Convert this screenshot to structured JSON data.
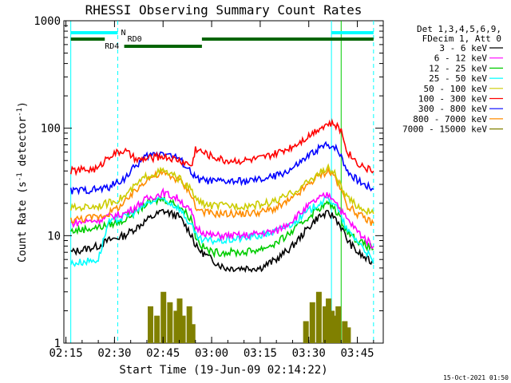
{
  "chart_data": {
    "type": "line",
    "title": "RHESSI Observing Summary Count Rates",
    "xlabel": "Start Time (19-Jun-09 02:14:22)",
    "ylabel_main": "Count Rate (s",
    "ylabel_sup1": "-1",
    "ylabel_mid": " detector",
    "ylabel_sup2": "-1",
    "ylabel_end": ")",
    "yscale": "log",
    "ylim": [
      1,
      1000
    ],
    "xlim": [
      "02:14:22",
      "03:53:00"
    ],
    "x_ticks": [
      {
        "t": 15,
        "label": "02:15"
      },
      {
        "t": 30,
        "label": "02:30"
      },
      {
        "t": 45,
        "label": "02:45"
      },
      {
        "t": 60,
        "label": "03:00"
      },
      {
        "t": 75,
        "label": "03:15"
      },
      {
        "t": 90,
        "label": "03:30"
      },
      {
        "t": 105,
        "label": "03:45"
      }
    ],
    "y_ticks": [
      {
        "v": 1,
        "label": "1"
      },
      {
        "v": 10,
        "label": "10"
      },
      {
        "v": 100,
        "label": "100"
      },
      {
        "v": 1000,
        "label": "1000"
      }
    ],
    "legend_header": [
      "Det 1,3,4,5,6,9,",
      "FDecim 1, Att 0"
    ],
    "legend_placement": "right",
    "series": [
      {
        "name": "3 - 6 keV",
        "color": "#000000",
        "x": [
          16.5,
          25,
          28,
          33,
          37,
          40,
          45,
          50,
          54,
          55,
          57,
          60,
          64,
          70,
          75,
          80,
          85,
          90,
          93,
          96,
          98,
          100,
          102,
          105,
          108,
          110
        ],
        "y": [
          7,
          8,
          9,
          10,
          12,
          14,
          17,
          15,
          10,
          8,
          7,
          6,
          5,
          5,
          5,
          6,
          8,
          12,
          15,
          16,
          15,
          12,
          9,
          7,
          6,
          5.5
        ]
      },
      {
        "name": "6 - 12 keV",
        "color": "#ff00ff",
        "x": [
          16.5,
          25,
          28,
          33,
          37,
          40,
          45,
          50,
          54,
          55,
          57,
          60,
          64,
          70,
          75,
          80,
          85,
          90,
          93,
          96,
          98,
          100,
          102,
          105,
          108,
          110
        ],
        "y": [
          13,
          14,
          15,
          16,
          19,
          22,
          25,
          22,
          16,
          12,
          11,
          10,
          10,
          10,
          10.5,
          11,
          14,
          19,
          22,
          24,
          22,
          17,
          14,
          11,
          9,
          8
        ]
      },
      {
        "name": "12 - 25 keV",
        "color": "#00cc00",
        "x": [
          16.5,
          25,
          28,
          33,
          37,
          40,
          45,
          50,
          54,
          55,
          57,
          60,
          64,
          70,
          75,
          80,
          85,
          90,
          93,
          96,
          98,
          100,
          102,
          105,
          108,
          110
        ],
        "y": [
          11,
          12,
          12.5,
          14,
          17,
          20,
          22,
          19,
          14,
          10,
          8,
          7,
          7,
          7,
          7.5,
          8.5,
          11,
          15,
          18,
          20,
          18,
          14,
          11,
          9,
          8,
          7.5
        ]
      },
      {
        "name": "25 - 50 keV",
        "color": "#00ffff",
        "x": [
          16.5,
          25,
          28,
          33,
          37,
          40,
          45,
          50,
          54,
          55,
          57,
          60,
          64,
          70,
          75,
          80,
          85,
          90,
          93,
          96,
          98,
          100,
          102,
          105,
          108,
          110
        ],
        "y": [
          5.5,
          6,
          13,
          15,
          17,
          20,
          22,
          18,
          12,
          10,
          9,
          9,
          9,
          9.5,
          10,
          11,
          13,
          17,
          20,
          22,
          20,
          15,
          11,
          9,
          7,
          5.5
        ]
      },
      {
        "name": "50 - 100 keV",
        "color": "#cccc00",
        "x": [
          16.5,
          25,
          28,
          33,
          37,
          40,
          45,
          50,
          54,
          55,
          57,
          60,
          64,
          70,
          75,
          80,
          85,
          90,
          93,
          96,
          98,
          100,
          102,
          105,
          108,
          110
        ],
        "y": [
          18,
          19,
          20,
          23,
          30,
          36,
          40,
          34,
          26,
          22,
          20,
          19,
          19,
          19,
          19.5,
          21,
          25,
          32,
          38,
          42,
          38,
          28,
          22,
          19,
          17,
          16
        ]
      },
      {
        "name": "100 - 300 keV",
        "color": "#ff0000",
        "x": [
          16.5,
          25,
          28,
          33,
          37,
          40,
          45,
          50,
          54,
          55,
          57,
          60,
          64,
          70,
          75,
          80,
          85,
          90,
          93,
          96,
          98,
          100,
          102,
          105,
          108,
          110
        ],
        "y": [
          40,
          42,
          55,
          62,
          50,
          52,
          55,
          50,
          45,
          65,
          60,
          55,
          50,
          50,
          52,
          58,
          68,
          85,
          100,
          110,
          108,
          95,
          60,
          48,
          42,
          40
        ]
      },
      {
        "name": "300 - 800 keV",
        "color": "#0000ff",
        "x": [
          16.5,
          25,
          28,
          33,
          37,
          40,
          45,
          50,
          54,
          55,
          57,
          60,
          64,
          70,
          75,
          80,
          85,
          90,
          93,
          96,
          98,
          100,
          102,
          105,
          108,
          110
        ],
        "y": [
          26,
          27,
          28,
          34,
          46,
          55,
          60,
          52,
          38,
          34,
          33,
          32,
          32,
          32,
          33,
          36,
          42,
          55,
          65,
          70,
          68,
          55,
          40,
          33,
          29,
          27
        ]
      },
      {
        "name": "800 - 7000 keV",
        "color": "#ff8c00",
        "x": [
          16.5,
          25,
          28,
          33,
          37,
          40,
          45,
          50,
          54,
          55,
          57,
          60,
          64,
          70,
          75,
          80,
          85,
          90,
          93,
          96,
          98,
          100,
          102,
          105,
          108,
          110
        ],
        "y": [
          14,
          15,
          16,
          20,
          27,
          34,
          38,
          33,
          24,
          18,
          17,
          16,
          16,
          16,
          16.5,
          18,
          22,
          30,
          36,
          40,
          36,
          26,
          19,
          16,
          14,
          13
        ]
      },
      {
        "name": "7000 - 15000 keV",
        "color": "#808000",
        "x": [
          41,
          43,
          45,
          47,
          49,
          50,
          51,
          53,
          54,
          89,
          91,
          93,
          95,
          96,
          97,
          98,
          99,
          101,
          102
        ],
        "y": [
          2.2,
          1.8,
          3,
          2.4,
          2,
          2.6,
          1.8,
          2.2,
          1.5,
          1.6,
          2.4,
          3,
          2.2,
          2.6,
          2,
          1.8,
          2.2,
          1.6,
          1.4
        ]
      }
    ],
    "state_bars": [
      {
        "label": "N",
        "color": "#00ffff",
        "level": 0,
        "spans": [
          [
            16.5,
            31
          ],
          [
            97,
            110
          ]
        ]
      },
      {
        "label": "RD0",
        "color": "#006400",
        "level": 1,
        "spans": [
          [
            16.5,
            27
          ],
          [
            57,
            110
          ]
        ]
      },
      {
        "label": "RD4",
        "color": "#006400",
        "level": 2,
        "spans": [
          [
            33,
            57
          ]
        ]
      }
    ],
    "vertical_markers": [
      {
        "t": 16.5,
        "color": "#00ffff",
        "style": "solid"
      },
      {
        "t": 31,
        "color": "#00ffff",
        "style": "dashed"
      },
      {
        "t": 97,
        "color": "#00ffff",
        "style": "solid"
      },
      {
        "t": 100,
        "color": "#00cc00",
        "style": "solid"
      },
      {
        "t": 110,
        "color": "#00ffff",
        "style": "dashed"
      }
    ],
    "footer_date": "15-Oct-2021 01:50"
  }
}
